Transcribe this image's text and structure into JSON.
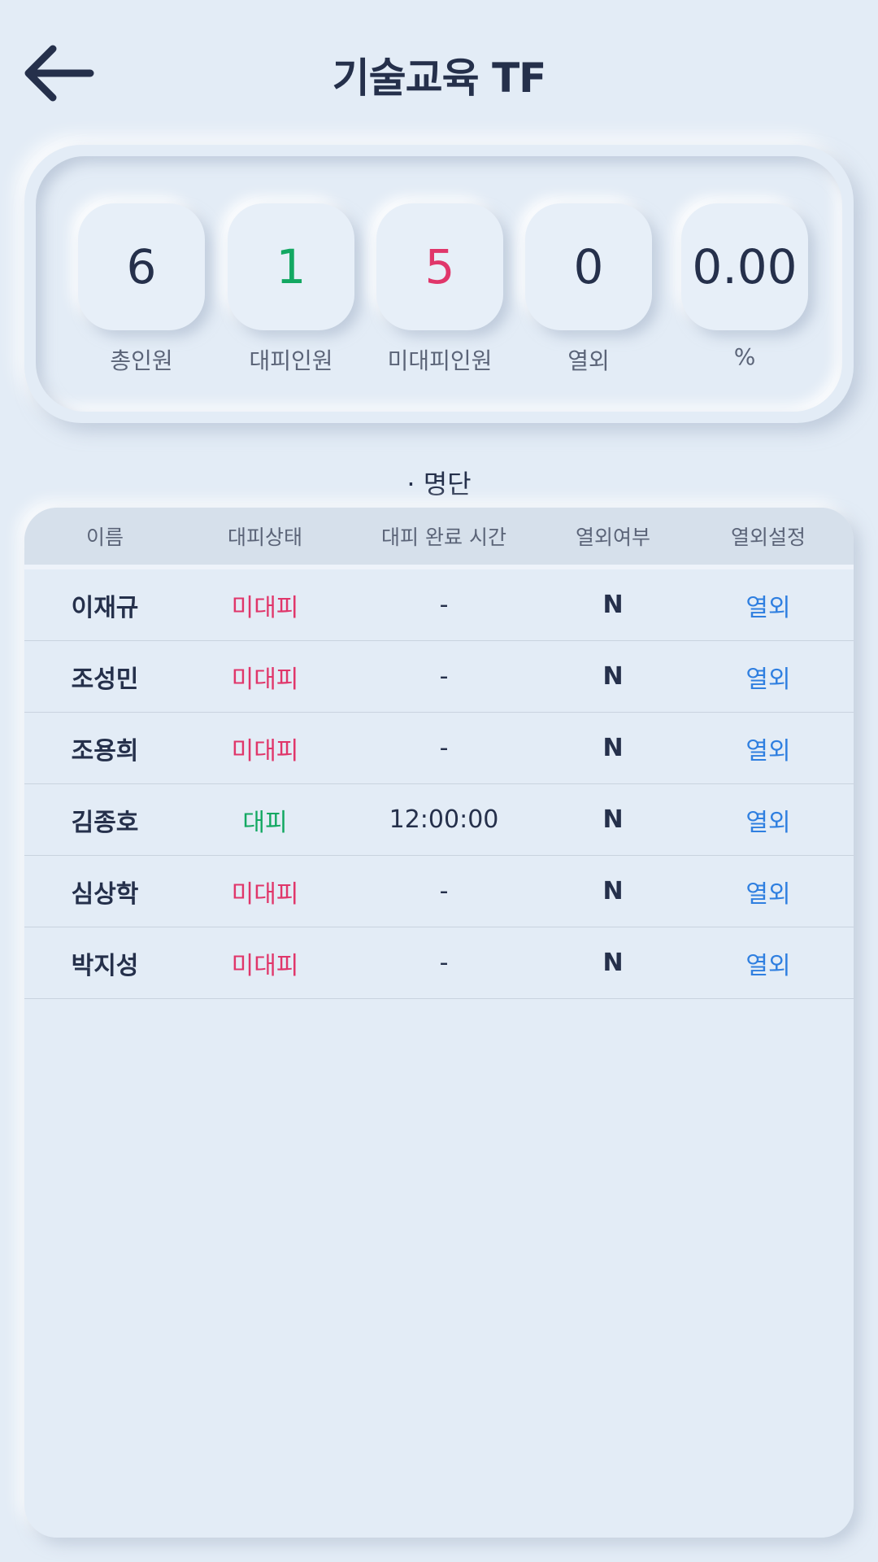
{
  "header": {
    "title": "기술교육 TF",
    "back_icon": "arrow-left-icon"
  },
  "stats": [
    {
      "value": "6",
      "label": "총인원",
      "color": "#25304b"
    },
    {
      "value": "1",
      "label": "대피인원",
      "color": "#13a862"
    },
    {
      "value": "5",
      "label": "미대피인원",
      "color": "#e0366a"
    },
    {
      "value": "0",
      "label": "열외",
      "color": "#25304b"
    },
    {
      "value": "0.00",
      "label": "%",
      "color": "#25304b"
    }
  ],
  "section": {
    "title": "· 명단"
  },
  "table": {
    "headers": [
      "이름",
      "대피상태",
      "대피 완료 시간",
      "열외여부",
      "열외설정"
    ],
    "rows": [
      {
        "name": "이재규",
        "status": "미대피",
        "time": "-",
        "exempt": "N",
        "action": "열외"
      },
      {
        "name": "조성민",
        "status": "미대피",
        "time": "-",
        "exempt": "N",
        "action": "열외"
      },
      {
        "name": "조용희",
        "status": "미대피",
        "time": "-",
        "exempt": "N",
        "action": "열외"
      },
      {
        "name": "김종호",
        "status": "대피",
        "time": "12:00:00",
        "exempt": "N",
        "action": "열외"
      },
      {
        "name": "심상학",
        "status": "미대피",
        "time": "-",
        "exempt": "N",
        "action": "열외"
      },
      {
        "name": "박지성",
        "status": "미대피",
        "time": "-",
        "exempt": "N",
        "action": "열외"
      }
    ]
  },
  "colors": {
    "evacuated": "#13a862",
    "not_evacuated": "#e0366a",
    "link": "#2f7fe0",
    "background": "#e3ecf6"
  }
}
